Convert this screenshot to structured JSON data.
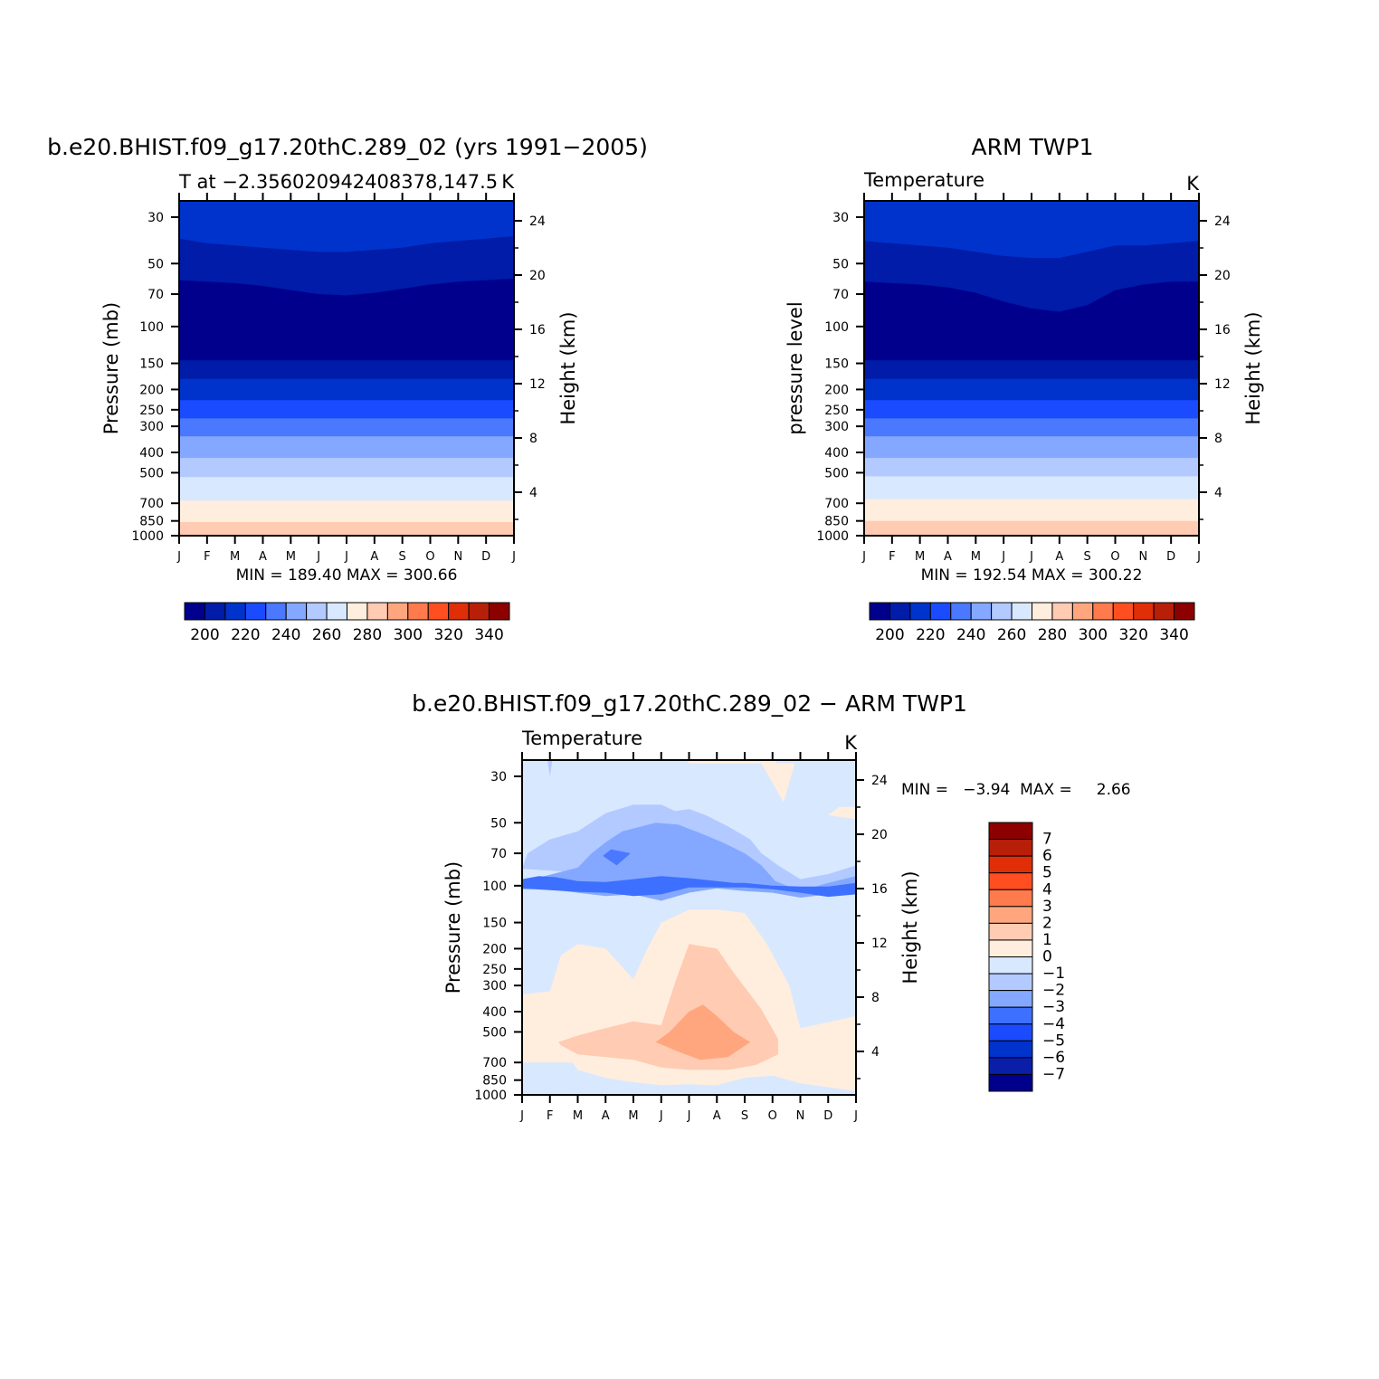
{
  "colors": {
    "abs_scale": [
      "#00008c",
      "#001ca8",
      "#0033cc",
      "#1a4bff",
      "#4a78ff",
      "#84a8ff",
      "#b2caff",
      "#d8e8ff",
      "#ffeede",
      "#ffcbb2",
      "#ffa67f",
      "#ff7a4c",
      "#ff4f20",
      "#e02e09",
      "#b81f08",
      "#8c0000"
    ],
    "diff_scale": [
      "#00008c",
      "#0a1ea8",
      "#0033cc",
      "#1a4bff",
      "#3e70ff",
      "#84a8ff",
      "#b2caff",
      "#d8e8ff",
      "#ffeede",
      "#ffcbb2",
      "#ffa67f",
      "#ff7a4c",
      "#ff4f20",
      "#e02e09",
      "#b81f08",
      "#8c0000"
    ]
  },
  "chart_data": [
    {
      "type": "heatmap",
      "id": "model",
      "title": "b.e20.BHIST.f09_g17.20thC.289_02 (yrs 1991−2005)",
      "left_string": "T at −2.356020942408378,147.5",
      "right_string": "K",
      "ylabel": "Pressure (mb)",
      "y2label": "Height (km)",
      "x_ticks": [
        "J",
        "F",
        "M",
        "A",
        "M",
        "J",
        "J",
        "A",
        "S",
        "O",
        "N",
        "D",
        "J"
      ],
      "y_ticks": [
        30,
        50,
        70,
        100,
        150,
        200,
        250,
        300,
        400,
        500,
        700,
        850,
        1000
      ],
      "y2_ticks": [
        24,
        20,
        16,
        12,
        8,
        4
      ],
      "ylim": [
        1000,
        20
      ],
      "min_max_text": "MIN = 189.40 MAX = 300.66",
      "colorbar_labels": [
        "200",
        "220",
        "240",
        "260",
        "280",
        "300",
        "320",
        "340"
      ],
      "levels": [
        200,
        210,
        220,
        230,
        240,
        250,
        260,
        270,
        280,
        290,
        300,
        310,
        320,
        330,
        340
      ],
      "band_boundaries_mb": [
        {
          "x": [
            0,
            1,
            2,
            3,
            4,
            5,
            6,
            7,
            8,
            9,
            10,
            11,
            12
          ],
          "p": [
            38,
            40,
            41,
            42,
            43,
            44,
            44,
            43,
            42,
            40,
            39,
            38,
            37
          ]
        },
        {
          "x": [
            0,
            1,
            2,
            3,
            4,
            5,
            6,
            7,
            8,
            9,
            10,
            11,
            12
          ],
          "p": [
            60,
            61,
            62,
            64,
            67,
            70,
            71,
            69,
            66,
            63,
            61,
            60,
            59
          ]
        },
        {
          "x": [
            0,
            12
          ],
          "p": [
            145,
            145
          ]
        },
        {
          "x": [
            0,
            12
          ],
          "p": [
            178,
            178
          ]
        },
        {
          "x": [
            0,
            12
          ],
          "p": [
            225,
            225
          ]
        },
        {
          "x": [
            0,
            12
          ],
          "p": [
            275,
            275
          ]
        },
        {
          "x": [
            0,
            12
          ],
          "p": [
            335,
            335
          ]
        },
        {
          "x": [
            0,
            12
          ],
          "p": [
            425,
            425
          ]
        },
        {
          "x": [
            0,
            12
          ],
          "p": [
            525,
            525
          ]
        },
        {
          "x": [
            0,
            12
          ],
          "p": [
            680,
            680
          ]
        },
        {
          "x": [
            0,
            12
          ],
          "p": [
            860,
            860
          ]
        }
      ]
    },
    {
      "type": "heatmap",
      "id": "obs",
      "title": "ARM TWP1",
      "left_string": "Temperature",
      "right_string": "K",
      "ylabel": "pressure level",
      "y2label": "Height (km)",
      "x_ticks": [
        "J",
        "F",
        "M",
        "A",
        "M",
        "J",
        "J",
        "A",
        "S",
        "O",
        "N",
        "D",
        "J"
      ],
      "y_ticks": [
        30,
        50,
        70,
        100,
        150,
        200,
        250,
        300,
        400,
        500,
        700,
        850,
        1000
      ],
      "y2_ticks": [
        24,
        20,
        16,
        12,
        8,
        4
      ],
      "ylim": [
        1000,
        20
      ],
      "min_max_text": "MIN = 192.54 MAX = 300.22",
      "colorbar_labels": [
        "200",
        "220",
        "240",
        "260",
        "280",
        "300",
        "320",
        "340"
      ],
      "levels": [
        200,
        210,
        220,
        230,
        240,
        250,
        260,
        270,
        280,
        290,
        300,
        310,
        320,
        330,
        340
      ],
      "band_boundaries_mb": [
        {
          "x": [
            0,
            1,
            2,
            3,
            4,
            5,
            6,
            7,
            8,
            9,
            10,
            11,
            12
          ],
          "p": [
            39,
            40,
            41,
            42,
            44,
            46,
            47,
            47,
            44,
            41,
            41,
            40,
            39
          ]
        },
        {
          "x": [
            0,
            1,
            2,
            3,
            4,
            5,
            6,
            7,
            8,
            9,
            10,
            11,
            12
          ],
          "p": [
            61,
            62,
            63,
            65,
            69,
            76,
            82,
            85,
            79,
            67,
            63,
            61,
            61
          ]
        },
        {
          "x": [
            0,
            12
          ],
          "p": [
            145,
            145
          ]
        },
        {
          "x": [
            0,
            12
          ],
          "p": [
            178,
            178
          ]
        },
        {
          "x": [
            0,
            12
          ],
          "p": [
            225,
            225
          ]
        },
        {
          "x": [
            0,
            12
          ],
          "p": [
            275,
            275
          ]
        },
        {
          "x": [
            0,
            12
          ],
          "p": [
            335,
            335
          ]
        },
        {
          "x": [
            0,
            12
          ],
          "p": [
            425,
            425
          ]
        },
        {
          "x": [
            0,
            12
          ],
          "p": [
            520,
            520
          ]
        },
        {
          "x": [
            0,
            12
          ],
          "p": [
            670,
            670
          ]
        },
        {
          "x": [
            0,
            12
          ],
          "p": [
            850,
            850
          ]
        }
      ]
    },
    {
      "type": "heatmap",
      "id": "diff",
      "title": "b.e20.BHIST.f09_g17.20thC.289_02 − ARM TWP1",
      "left_string": "Temperature",
      "right_string": "K",
      "ylabel": "Pressure (mb)",
      "y2label": "Height (km)",
      "x_ticks": [
        "J",
        "F",
        "M",
        "A",
        "M",
        "J",
        "J",
        "A",
        "S",
        "O",
        "N",
        "D",
        "J"
      ],
      "y_ticks": [
        30,
        50,
        70,
        100,
        150,
        200,
        250,
        300,
        400,
        500,
        700,
        850,
        1000
      ],
      "y2_ticks": [
        24,
        20,
        16,
        12,
        8,
        4
      ],
      "ylim": [
        1000,
        20
      ],
      "min_max_text": "MIN =   −3.94  MAX =     2.66",
      "colorbar_labels": [
        "7",
        "6",
        "5",
        "4",
        "3",
        "2",
        "1",
        "0",
        "−1",
        "−2",
        "−3",
        "−4",
        "−5",
        "−6",
        "−7"
      ],
      "levels": [
        -7,
        -6,
        -5,
        -4,
        -3,
        -2,
        -1,
        0,
        1,
        2,
        3,
        4,
        5,
        6,
        7
      ],
      "regions": [
        {
          "level": "-2 to -1",
          "x": [
            0,
            0.2,
            1,
            2,
            3,
            4,
            5,
            5.5,
            6,
            6.6,
            7.4,
            8.2,
            8.6,
            9.2,
            10,
            11,
            12,
            12
          ],
          "p": [
            83,
            70,
            60,
            55,
            45,
            41,
            41,
            44,
            43,
            46,
            52,
            60,
            70,
            80,
            93,
            88,
            80,
            106
          ]
        },
        {
          "level": "-3 to -2",
          "x": [
            0,
            0.8,
            2,
            2.5,
            3,
            3.6,
            4.8,
            5.6,
            6.4,
            7.2,
            8,
            8.6,
            9.1,
            10,
            11,
            12,
            12,
            11,
            10,
            9,
            8,
            7,
            6,
            5,
            4,
            3,
            2,
            1,
            0
          ],
          "p": [
            97,
            90,
            82,
            70,
            62,
            55,
            50,
            51,
            56,
            62,
            70,
            80,
            95,
            106,
            97,
            90,
            103,
            110,
            114,
            108,
            106,
            103,
            108,
            118,
            110,
            112,
            108,
            104,
            104
          ]
        },
        {
          "level": "-4 to -3",
          "x": [
            2.9,
            3.2,
            3.9,
            3.4
          ],
          "p": [
            72,
            67,
            70,
            80
          ]
        },
        {
          "level": "-4 to -3 (band)",
          "x": [
            0,
            0.6,
            1.2,
            2,
            3,
            4,
            5,
            6,
            7,
            7.6,
            8,
            9,
            10,
            11,
            12,
            12,
            11,
            10,
            9,
            8,
            7,
            6,
            5,
            4,
            3,
            2,
            1,
            0
          ],
          "p": [
            93,
            90,
            91,
            95,
            96,
            93,
            90,
            92,
            95,
            97,
            97,
            100,
            101,
            101,
            97,
            110,
            113,
            108,
            104,
            102,
            102,
            102,
            110,
            112,
            108,
            107,
            105,
            103
          ]
        },
        {
          "level": "0 to 1",
          "x": [
            0,
            1,
            1.4,
            2,
            3,
            4,
            4.5,
            5,
            5.5,
            6,
            7,
            8,
            8.8,
            9.6,
            10,
            12,
            12,
            11,
            10,
            9,
            8,
            7,
            6,
            5,
            4,
            3,
            2,
            1.8,
            1,
            0
          ],
          "p": [
            330,
            320,
            215,
            190,
            200,
            280,
            200,
            150,
            140,
            130,
            130,
            135,
            190,
            300,
            480,
            420,
            960,
            920,
            880,
            810,
            830,
            900,
            890,
            900,
            870,
            830,
            760,
            700,
            700,
            700
          ]
        },
        {
          "level": "1 to 2",
          "x": [
            1.3,
            2,
            3,
            4,
            5,
            5.5,
            6,
            7,
            7.6,
            8.6,
            9.2,
            9.2,
            8.4,
            7.4,
            6,
            5,
            4,
            3,
            2,
            1.4
          ],
          "p": [
            560,
            520,
            480,
            445,
            465,
            290,
            190,
            200,
            260,
            390,
            540,
            640,
            720,
            760,
            760,
            740,
            680,
            660,
            640,
            580
          ]
        },
        {
          "level": "2 to 3",
          "x": [
            4.8,
            5.3,
            6,
            6.5,
            7,
            7.6,
            8.2,
            7.4,
            6.4,
            5.6
          ],
          "p": [
            560,
            500,
            400,
            370,
            420,
            500,
            560,
            660,
            680,
            620
          ]
        }
      ]
    }
  ]
}
